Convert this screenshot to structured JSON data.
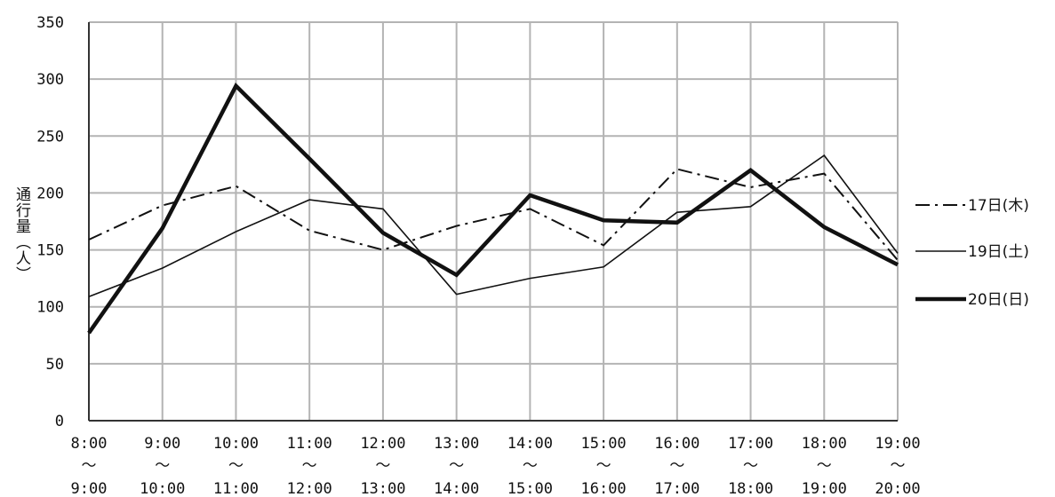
{
  "chart_data": {
    "type": "line",
    "title": "",
    "ylabel": "通行量（人）",
    "xlabel": "",
    "ylim": [
      0,
      350
    ],
    "yticks": [
      0,
      50,
      100,
      150,
      200,
      250,
      300,
      350
    ],
    "grid": true,
    "legend_position": "right",
    "categories": [
      {
        "from": "8:00",
        "to": "9:00"
      },
      {
        "from": "9:00",
        "to": "10:00"
      },
      {
        "from": "10:00",
        "to": "11:00"
      },
      {
        "from": "11:00",
        "to": "12:00"
      },
      {
        "from": "12:00",
        "to": "13:00"
      },
      {
        "from": "13:00",
        "to": "14:00"
      },
      {
        "from": "14:00",
        "to": "15:00"
      },
      {
        "from": "15:00",
        "to": "16:00"
      },
      {
        "from": "16:00",
        "to": "17:00"
      },
      {
        "from": "17:00",
        "to": "18:00"
      },
      {
        "from": "18:00",
        "to": "19:00"
      },
      {
        "from": "19:00",
        "to": "20:00"
      }
    ],
    "range_mark": "～",
    "series": [
      {
        "name": "17日(木)",
        "style": "dashdot",
        "color": "#111111",
        "values": [
          159,
          189,
          206,
          167,
          150,
          171,
          186,
          154,
          221,
          205,
          217,
          141
        ]
      },
      {
        "name": "19日(土)",
        "style": "thin",
        "color": "#111111",
        "values": [
          109,
          134,
          166,
          194,
          186,
          111,
          125,
          135,
          183,
          188,
          233,
          147
        ]
      },
      {
        "name": "20日(日)",
        "style": "thick",
        "color": "#111111",
        "values": [
          77,
          169,
          294,
          230,
          165,
          128,
          198,
          176,
          174,
          220,
          170,
          137
        ]
      }
    ]
  }
}
